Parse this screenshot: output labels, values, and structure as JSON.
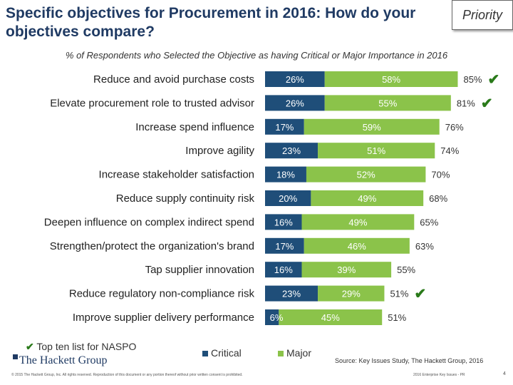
{
  "title": "Specific objectives for Procurement in 2016:  How do your objectives compare?",
  "priority_label": "Priority",
  "subtitle": "% of Respondents who Selected the Objective as having Critical or Major Importance in 2016",
  "colors": {
    "critical": "#1f4e79",
    "major": "#8bc34a",
    "check": "#2a7a1a"
  },
  "chart_data": {
    "type": "bar",
    "stacked": true,
    "orientation": "horizontal",
    "categories": [
      "Reduce and avoid purchase costs",
      "Elevate procurement role to trusted advisor",
      "Increase spend influence",
      "Improve agility",
      "Increase stakeholder satisfaction",
      "Reduce supply continuity risk",
      "Deepen influence on complex indirect spend",
      "Strengthen/protect the organization's brand",
      "Tap supplier innovation",
      "Reduce regulatory non-compliance risk",
      "Improve supplier delivery performance"
    ],
    "series": [
      {
        "name": "Critical",
        "values": [
          26,
          26,
          17,
          23,
          18,
          20,
          16,
          17,
          16,
          23,
          6
        ],
        "labels": [
          "26%",
          "26%",
          "17%",
          "23%",
          "18%",
          "20%",
          "16%",
          "17%",
          "16%",
          "23%",
          "6%"
        ]
      },
      {
        "name": "Major",
        "values": [
          58,
          55,
          59,
          51,
          52,
          49,
          49,
          46,
          39,
          29,
          45
        ],
        "labels": [
          "58%",
          "55%",
          "59%",
          "51%",
          "52%",
          "49%",
          "49%",
          "46%",
          "39%",
          "29%",
          "45%"
        ]
      }
    ],
    "totals": [
      "85%",
      "81%",
      "76%",
      "74%",
      "70%",
      "68%",
      "65%",
      "63%",
      "55%",
      "51%",
      "51%"
    ],
    "top_ten_naspo": [
      true,
      true,
      false,
      false,
      false,
      false,
      false,
      false,
      false,
      true,
      false
    ],
    "xlim": [
      0,
      100
    ],
    "legend_position": "bottom"
  },
  "legend": {
    "naspo_label": "Top ten list for NASPO",
    "critical_label": "Critical",
    "major_label": "Major"
  },
  "source": "Source: Key Issues Study, The Hackett Group, 2016",
  "footer": {
    "copyright": "© 2015 The Hackett Group, Inc. All rights reserved. Reproduction of this document or any portion thereof without prior written consent is prohibited.",
    "doc_ref": "2016 Enterprise Key Issues - PR",
    "page_number": "4",
    "logo_text": "The Hackett Group"
  }
}
